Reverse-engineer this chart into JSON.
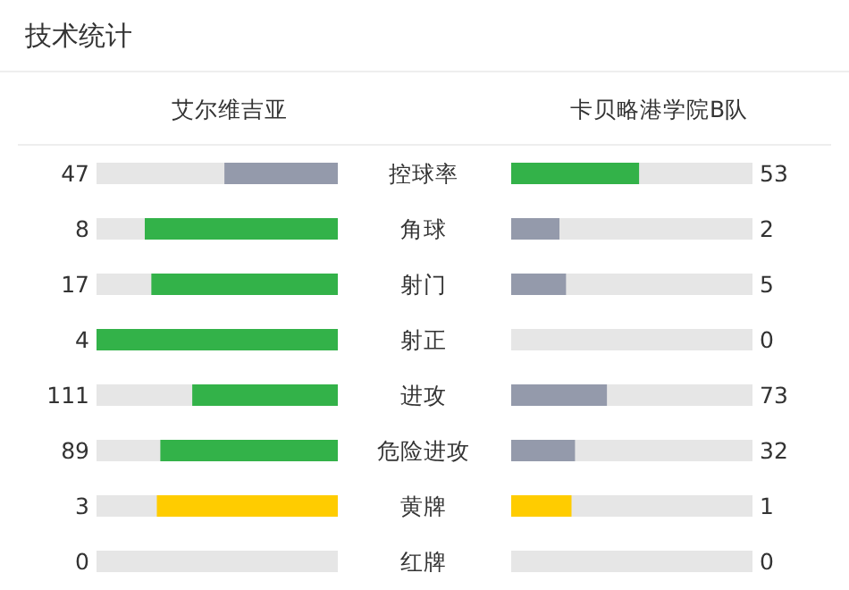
{
  "chart_data": {
    "type": "other",
    "title": "技术统计",
    "data_labels": true,
    "categories": [
      "控球率",
      "角球",
      "射门",
      "射正",
      "进攻",
      "危险进攻",
      "黄牌",
      "红牌"
    ],
    "series": [
      {
        "name": "艾尔维吉亚",
        "values": [
          47,
          8,
          17,
          4,
          111,
          89,
          3,
          0
        ],
        "colors": [
          "#949aab",
          "#33b249",
          "#33b249",
          "#33b249",
          "#33b249",
          "#33b249",
          "#ffcc00",
          "#e03030"
        ]
      },
      {
        "name": "卡贝略港学院B队",
        "values": [
          53,
          2,
          5,
          0,
          73,
          32,
          1,
          0
        ],
        "colors": [
          "#33b249",
          "#949aab",
          "#949aab",
          "#949aab",
          "#949aab",
          "#949aab",
          "#ffcc00",
          "#e03030"
        ]
      }
    ]
  }
}
